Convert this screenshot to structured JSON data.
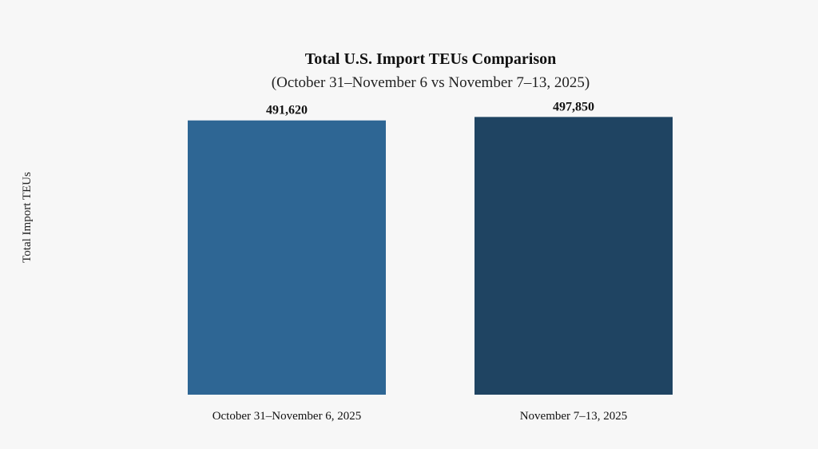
{
  "chart_data": {
    "type": "bar",
    "title": "Total U.S. Import TEUs Comparison",
    "subtitle": "(October 31–November 6 vs November 7–13, 2025)",
    "xlabel": "",
    "ylabel": "Total Import TEUs",
    "categories": [
      "October 31–November 6, 2025",
      "November 7–13, 2025"
    ],
    "values": [
      491620,
      497850
    ],
    "data_labels": [
      "491,620",
      "497,850"
    ],
    "colors": [
      "#2e6694",
      "#1f4462"
    ],
    "ylim": [
      0,
      507000
    ],
    "grid": false,
    "legend": "none"
  }
}
